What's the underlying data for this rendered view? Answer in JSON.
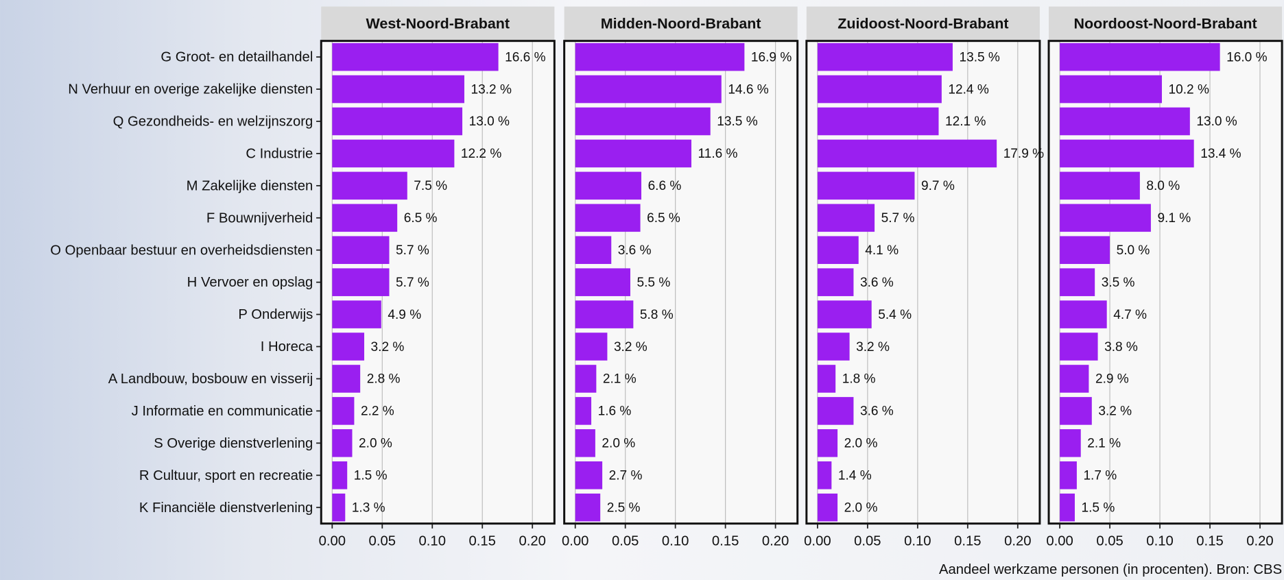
{
  "chart_data": {
    "type": "bar",
    "facet": true,
    "orientation": "horizontal",
    "x_label": "Aandeel werkzame personen (in procenten). Bron: CBS",
    "categories": [
      "G Groot- en detailhandel",
      "N Verhuur en overige zakelijke diensten",
      "Q Gezondheids- en welzijnszorg",
      "C Industrie",
      "M Zakelijke diensten",
      "F Bouwnijverheid",
      "O Openbaar bestuur en overheidsdiensten",
      "H Vervoer en opslag",
      "P Onderwijs",
      "I Horeca",
      "A Landbouw, bosbouw en visserij",
      "J Informatie en communicatie",
      "S Overige dienstverlening",
      "R Cultuur, sport en recreatie",
      "K Financiële dienstverlening"
    ],
    "series": [
      {
        "name": "West-Noord-Brabant",
        "color": "#9a1ff0",
        "values": [
          0.166,
          0.132,
          0.13,
          0.122,
          0.075,
          0.065,
          0.057,
          0.057,
          0.049,
          0.032,
          0.028,
          0.022,
          0.02,
          0.015,
          0.013
        ],
        "value_labels": [
          "16.6 %",
          "13.2 %",
          "13.0 %",
          "12.2 %",
          "7.5 %",
          "6.5 %",
          "5.7 %",
          "5.7 %",
          "4.9 %",
          "3.2 %",
          "2.8 %",
          "2.2 %",
          "2.0 %",
          "1.5 %",
          "1.3 %"
        ]
      },
      {
        "name": "Midden-Noord-Brabant",
        "color": "#9a1ff0",
        "values": [
          0.169,
          0.146,
          0.135,
          0.116,
          0.066,
          0.065,
          0.036,
          0.055,
          0.058,
          0.032,
          0.021,
          0.016,
          0.02,
          0.027,
          0.025
        ],
        "value_labels": [
          "16.9 %",
          "14.6 %",
          "13.5 %",
          "11.6 %",
          "6.6 %",
          "6.5 %",
          "3.6 %",
          "5.5 %",
          "5.8 %",
          "3.2 %",
          "2.1 %",
          "1.6 %",
          "2.0 %",
          "2.7 %",
          "2.5 %"
        ]
      },
      {
        "name": "Zuidoost-Noord-Brabant",
        "color": "#9a1ff0",
        "values": [
          0.135,
          0.124,
          0.121,
          0.179,
          0.097,
          0.057,
          0.041,
          0.036,
          0.054,
          0.032,
          0.018,
          0.036,
          0.02,
          0.014,
          0.02
        ],
        "value_labels": [
          "13.5 %",
          "12.4 %",
          "12.1 %",
          "17.9 %",
          "9.7 %",
          "5.7 %",
          "4.1 %",
          "3.6 %",
          "5.4 %",
          "3.2 %",
          "1.8 %",
          "3.6 %",
          "2.0 %",
          "1.4 %",
          "2.0 %"
        ]
      },
      {
        "name": "Noordoost-Noord-Brabant",
        "color": "#9a1ff0",
        "values": [
          0.16,
          0.102,
          0.13,
          0.134,
          0.08,
          0.091,
          0.05,
          0.035,
          0.047,
          0.038,
          0.029,
          0.032,
          0.021,
          0.017,
          0.015
        ],
        "value_labels": [
          "16.0 %",
          "10.2 %",
          "13.0 %",
          "13.4 %",
          "8.0 %",
          "9.1 %",
          "5.0 %",
          "3.5 %",
          "4.7 %",
          "3.8 %",
          "2.9 %",
          "3.2 %",
          "2.1 %",
          "1.7 %",
          "1.5 %"
        ]
      }
    ],
    "xlim": [
      -0.011,
      0.222
    ],
    "xticks": [
      {
        "value": 0,
        "label": "0.00"
      },
      {
        "value": 0.05,
        "label": "0.05"
      },
      {
        "value": 0.1,
        "label": "0.10"
      },
      {
        "value": 0.15,
        "label": "0.15"
      },
      {
        "value": 0.2,
        "label": "0.20"
      }
    ],
    "grid": true
  }
}
